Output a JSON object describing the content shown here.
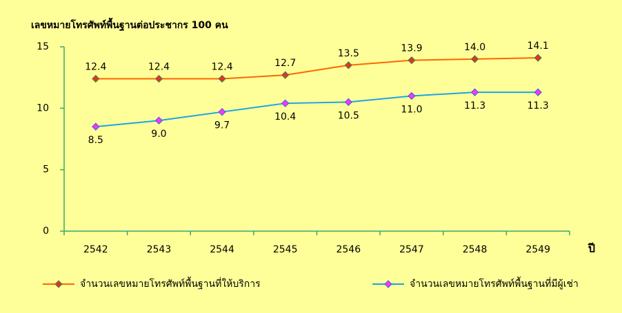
{
  "chart_data": {
    "type": "line",
    "title": "เลขหมายโทรศัพท์พื้นฐานต่อประชากร 100 คน",
    "x_label": "ปี",
    "categories": [
      "2542",
      "2543",
      "2544",
      "2545",
      "2546",
      "2547",
      "2548",
      "2549"
    ],
    "series": [
      {
        "name": "จำนวนเลขหมายโทรศัพท์พื้นฐานที่ให้บริการ",
        "color": "#ff6600",
        "marker_color": "#e8302a",
        "marker_edge": "#3a8a3a",
        "values": [
          12.4,
          12.4,
          12.4,
          12.7,
          13.5,
          13.9,
          14.0,
          14.1
        ],
        "value_labels": [
          "12.4",
          "12.4",
          "12.4",
          "12.7",
          "13.5",
          "13.9",
          "14.0",
          "14.1"
        ],
        "label_position": "above"
      },
      {
        "name": "จำนวนเลขหมายโทรศัพท์พื้นฐานที่มีผู้เช่า",
        "color": "#1aa3e8",
        "marker_color": "#ff33ff",
        "marker_edge": "#3366cc",
        "values": [
          8.5,
          9.0,
          9.7,
          10.4,
          10.5,
          11.0,
          11.3,
          11.3
        ],
        "value_labels": [
          "8.5",
          "9.0",
          "9.7",
          "10.4",
          "10.5",
          "11.0",
          "11.3",
          "11.3"
        ],
        "label_position": "below"
      }
    ],
    "ylim": [
      0,
      15
    ],
    "yticks": [
      0,
      5,
      10,
      15
    ],
    "axis_color": "#3aa66e",
    "grid": false,
    "legend": "bottom"
  }
}
